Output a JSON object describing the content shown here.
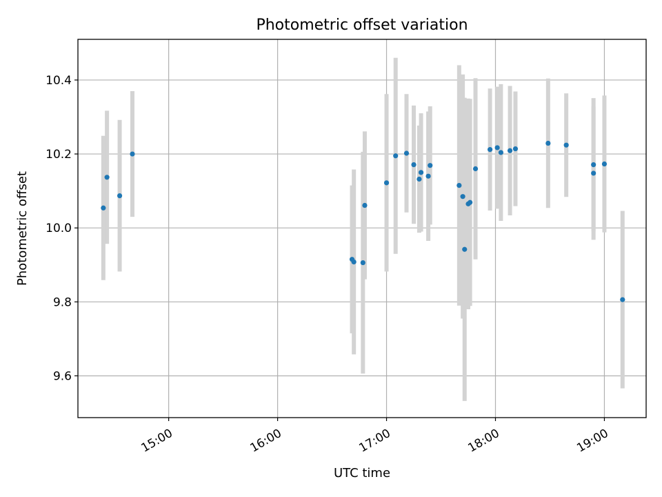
{
  "chart_data": {
    "type": "scatter",
    "title": "Photometric offset variation",
    "xlabel": "UTC time",
    "ylabel": "Photometric offset",
    "xlim": [
      "14:10",
      "19:23"
    ],
    "ylim": [
      9.487,
      10.51
    ],
    "xticks": [
      "15:00",
      "16:00",
      "17:00",
      "18:00",
      "19:00"
    ],
    "yticks": [
      9.6,
      9.8,
      10.0,
      10.2,
      10.4
    ],
    "grid": true,
    "colors": {
      "point": "#1f77b4",
      "errorbar": "#d3d3d3"
    },
    "points": [
      {
        "x": "14:24",
        "y": 10.054,
        "err": 0.195
      },
      {
        "x": "14:26",
        "y": 10.137,
        "err": 0.18
      },
      {
        "x": "14:33",
        "y": 10.087,
        "err": 0.205
      },
      {
        "x": "14:40",
        "y": 10.2,
        "err": 0.17
      },
      {
        "x": "16:41",
        "y": 9.915,
        "err": 0.2
      },
      {
        "x": "16:42",
        "y": 9.908,
        "err": 0.25
      },
      {
        "x": "16:47",
        "y": 9.906,
        "err": 0.3
      },
      {
        "x": "16:48",
        "y": 10.061,
        "err": 0.2
      },
      {
        "x": "17:00",
        "y": 10.122,
        "err": 0.24
      },
      {
        "x": "17:05",
        "y": 10.195,
        "err": 0.265
      },
      {
        "x": "17:11",
        "y": 10.202,
        "err": 0.16
      },
      {
        "x": "17:15",
        "y": 10.171,
        "err": 0.16
      },
      {
        "x": "17:18",
        "y": 10.132,
        "err": 0.145
      },
      {
        "x": "17:19",
        "y": 10.15,
        "err": 0.16
      },
      {
        "x": "17:23",
        "y": 10.14,
        "err": 0.175
      },
      {
        "x": "17:24",
        "y": 10.169,
        "err": 0.16
      },
      {
        "x": "17:40",
        "y": 10.115,
        "err": 0.325
      },
      {
        "x": "17:42",
        "y": 10.085,
        "err": 0.33
      },
      {
        "x": "17:43",
        "y": 9.942,
        "err": 0.41
      },
      {
        "x": "17:45",
        "y": 10.065,
        "err": 0.285
      },
      {
        "x": "17:46",
        "y": 10.069,
        "err": 0.28
      },
      {
        "x": "17:49",
        "y": 10.16,
        "err": 0.245
      },
      {
        "x": "17:57",
        "y": 10.212,
        "err": 0.165
      },
      {
        "x": "18:01",
        "y": 10.217,
        "err": 0.165
      },
      {
        "x": "18:03",
        "y": 10.204,
        "err": 0.185
      },
      {
        "x": "18:08",
        "y": 10.209,
        "err": 0.175
      },
      {
        "x": "18:11",
        "y": 10.214,
        "err": 0.155
      },
      {
        "x": "18:29",
        "y": 10.229,
        "err": 0.175
      },
      {
        "x": "18:39",
        "y": 10.224,
        "err": 0.14
      },
      {
        "x": "18:54",
        "y": 10.148,
        "err": 0.18
      },
      {
        "x": "18:54",
        "y": 10.171,
        "err": 0.18
      },
      {
        "x": "19:00",
        "y": 10.173,
        "err": 0.185
      },
      {
        "x": "19:10",
        "y": 9.806,
        "err": 0.24
      }
    ]
  }
}
